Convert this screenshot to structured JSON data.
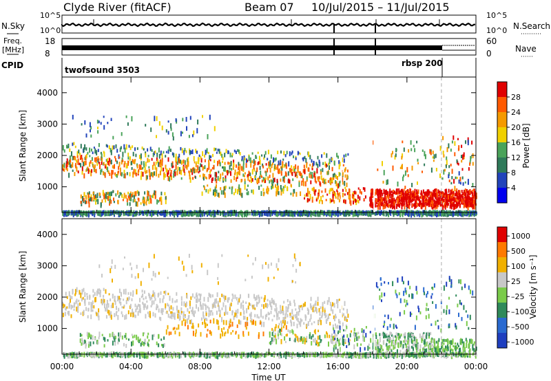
{
  "header": {
    "station": "Clyde River (fitACF)",
    "beam": "Beam 07",
    "date_range": "10/Jul/2015 – 11/Jul/2015"
  },
  "noise_panel": {
    "left_label": "N.Sky",
    "right_label": "N.Search",
    "left_ticks": [
      "10^5",
      "10^0"
    ],
    "right_ticks": [
      "10^5",
      "10^0"
    ]
  },
  "freq_panel": {
    "left_label_1": "Freq.",
    "left_label_2": "[MHz]",
    "right_label": "Nave",
    "left_ticks": [
      "18",
      "8"
    ],
    "right_ticks": [
      "60",
      "0"
    ]
  },
  "cpid_panel": {
    "label": "CPID",
    "segments": [
      {
        "name": "twofsound 3503",
        "start_hour": 0,
        "end_hour": 22
      },
      {
        "name": "rbsp 200",
        "start_hour": 22,
        "end_hour": 24
      }
    ]
  },
  "time_axis": {
    "xlabel": "Time UT",
    "ticks": [
      "00:00",
      "04:00",
      "08:00",
      "12:00",
      "16:00",
      "20:00",
      "00:00"
    ],
    "range_hours": [
      0,
      24
    ]
  },
  "chart_data": [
    {
      "type": "heatmap",
      "name": "power",
      "ylabel": "Slant Range [km]",
      "yticks": [
        "4000",
        "3000",
        "2000",
        "1000"
      ],
      "ylim": [
        180,
        4500
      ],
      "colorbar_label": "Power [dB]",
      "colorbar_ticks": [
        "28",
        "24",
        "20",
        "16",
        "12",
        "8",
        "4"
      ],
      "colorbar_colors": [
        "#0000ee",
        "#2244bb",
        "#2f7a5a",
        "#4aa35a",
        "#f0d000",
        "#f59a00",
        "#ff5a00",
        "#e00000"
      ]
    },
    {
      "type": "heatmap",
      "name": "velocity",
      "ylabel": "Slant Range [km]",
      "yticks": [
        "4000",
        "3000",
        "2000",
        "1000"
      ],
      "ylim": [
        180,
        4500
      ],
      "colorbar_label": "Velocity [m s⁻¹]",
      "colorbar_ticks": [
        "1000",
        "500",
        "100",
        "25",
        "–25",
        "–100",
        "–500",
        "–1000"
      ],
      "colorbar_colors": [
        "#1f3fbf",
        "#2a6ad0",
        "#2f8a5a",
        "#7acb4a",
        "#c8c8c8",
        "#f0b000",
        "#ff7a00",
        "#e00000"
      ]
    }
  ]
}
